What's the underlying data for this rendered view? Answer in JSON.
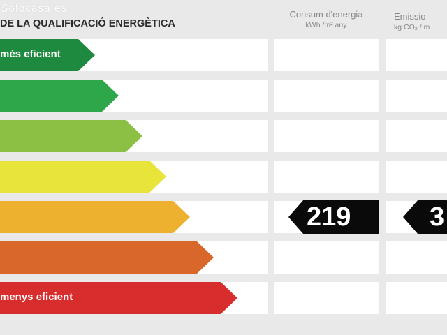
{
  "watermark": "Solocasa.es",
  "header": {
    "title": "DE LA QUALIFICACIÓ ENERGÈTICA",
    "consum_title": "Consum d'energia",
    "consum_unit": "kWh /m² any",
    "emissions_title": "Emissio",
    "emissions_unit": "kg CO₂ / m"
  },
  "ratings": [
    {
      "label": "més eficient",
      "color": "#1e8a3f"
    },
    {
      "label": "",
      "color": "#2ea64a"
    },
    {
      "label": "",
      "color": "#8bc044"
    },
    {
      "label": "",
      "color": "#e9e43a"
    },
    {
      "label": "",
      "color": "#edb02f"
    },
    {
      "label": "",
      "color": "#d9672a"
    },
    {
      "label": "menys eficient",
      "color": "#d82d2d"
    }
  ],
  "consum_value": "219",
  "emissions_value": "3",
  "value_row_index": 4,
  "colors": {
    "value_badge": "#0a0a0a",
    "row_background": "#ffffff",
    "page_background": "#e9e9e9"
  }
}
